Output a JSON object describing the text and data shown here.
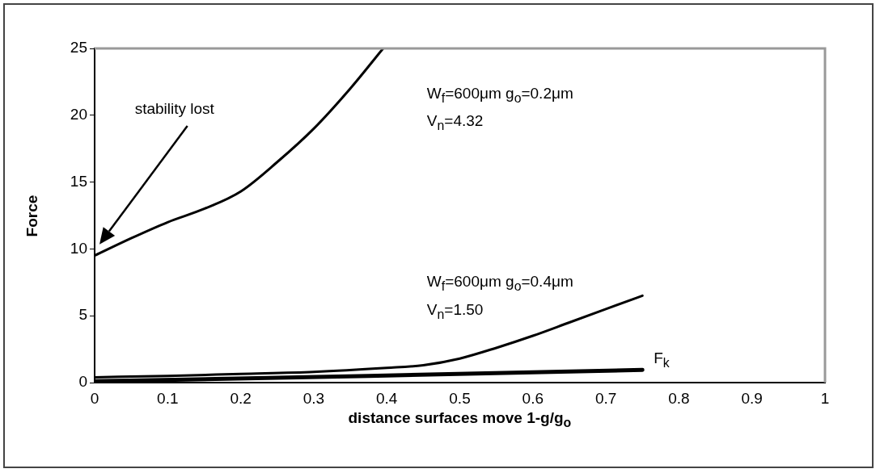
{
  "chart_data": {
    "type": "line",
    "xlabel": "distance surfaces move 1-g/g$_{o}$",
    "ylabel": "Force",
    "xlim": [
      0,
      1
    ],
    "xticks": [
      0,
      0.1,
      0.2,
      0.3,
      0.4,
      0.5,
      0.6,
      0.7,
      0.8,
      0.9,
      1
    ],
    "ylim": [
      0,
      25
    ],
    "yticks": [
      0,
      5,
      10,
      15,
      20,
      25
    ],
    "grid": false,
    "legend": false,
    "marker": "none",
    "line_style": "solid",
    "series": [
      {
        "color": "#000000",
        "x": [
          0,
          0.05,
          0.1,
          0.15,
          0.2,
          0.25,
          0.3,
          0.35,
          0.395
        ],
        "values": [
          9.5,
          10.8,
          12,
          13,
          14.3,
          16.5,
          19,
          22,
          25
        ]
      },
      {
        "color": "#000000",
        "x": [
          0,
          0.1,
          0.2,
          0.3,
          0.4,
          0.45,
          0.5,
          0.55,
          0.6,
          0.65,
          0.7,
          0.75
        ],
        "values": [
          0.4,
          0.5,
          0.65,
          0.8,
          1.1,
          1.3,
          1.8,
          2.6,
          3.5,
          4.5,
          5.5,
          6.5
        ]
      },
      {
        "name": "F$_{k}$",
        "color": "#000000",
        "x": [
          0,
          0.375,
          0.75
        ],
        "values": [
          0.1,
          0.5,
          0.95
        ]
      }
    ],
    "annotations": [
      "stability lost",
      "W$_{f}$=600μm g$_{o}$=0.2μm",
      "V$_{n}$=4.32",
      "W$_{f}$=600μm g$_{o}$=0.4μm",
      "V$_{n}$=1.50"
    ]
  }
}
